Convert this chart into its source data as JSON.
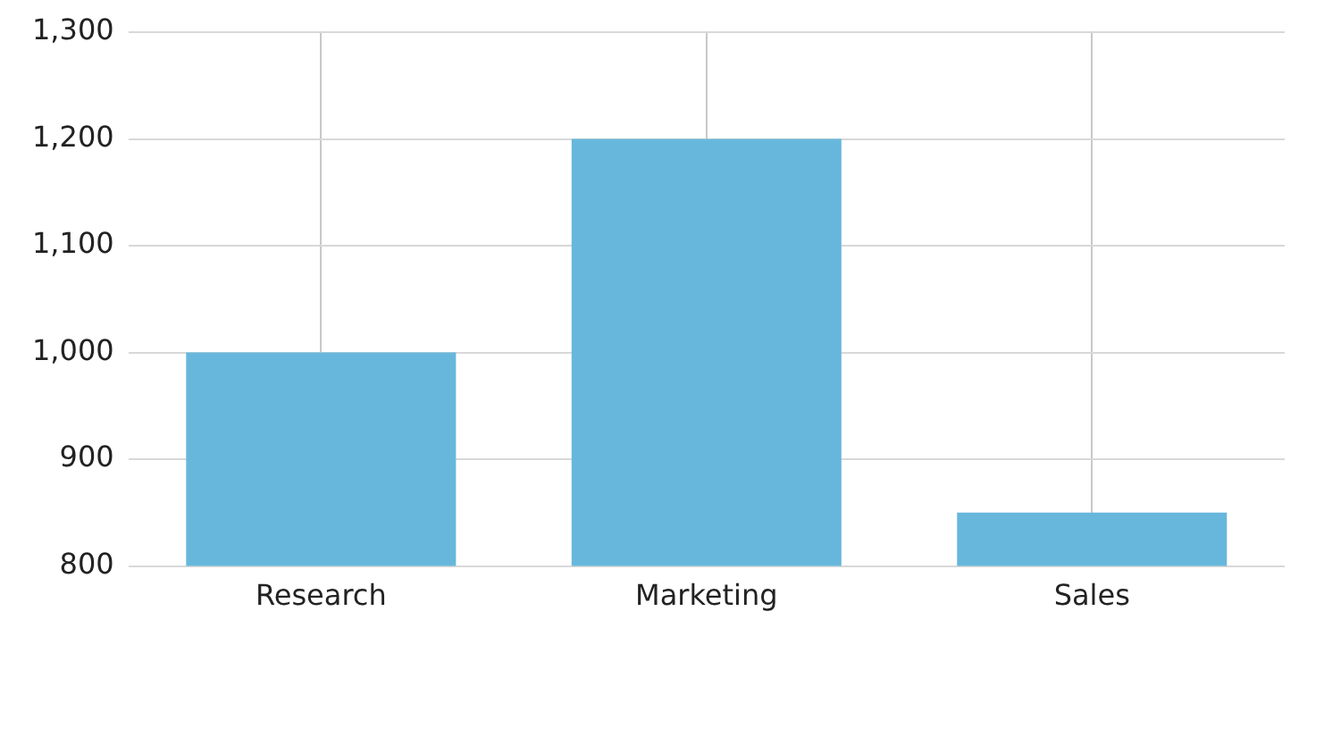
{
  "chart_data": {
    "type": "bar",
    "categories": [
      "Research",
      "Marketing",
      "Sales"
    ],
    "values": [
      1000,
      1200,
      850
    ],
    "color": "#67b7dc",
    "ylim": [
      800,
      1300
    ],
    "yticks": [
      800,
      900,
      {
        "value": 1000,
        "label": "1,000"
      },
      {
        "value": 1100,
        "label": "1,100"
      },
      {
        "value": 1200,
        "label": "1,200"
      },
      {
        "value": 1300,
        "label": "1,300"
      }
    ],
    "grid": true,
    "legend": false
  }
}
